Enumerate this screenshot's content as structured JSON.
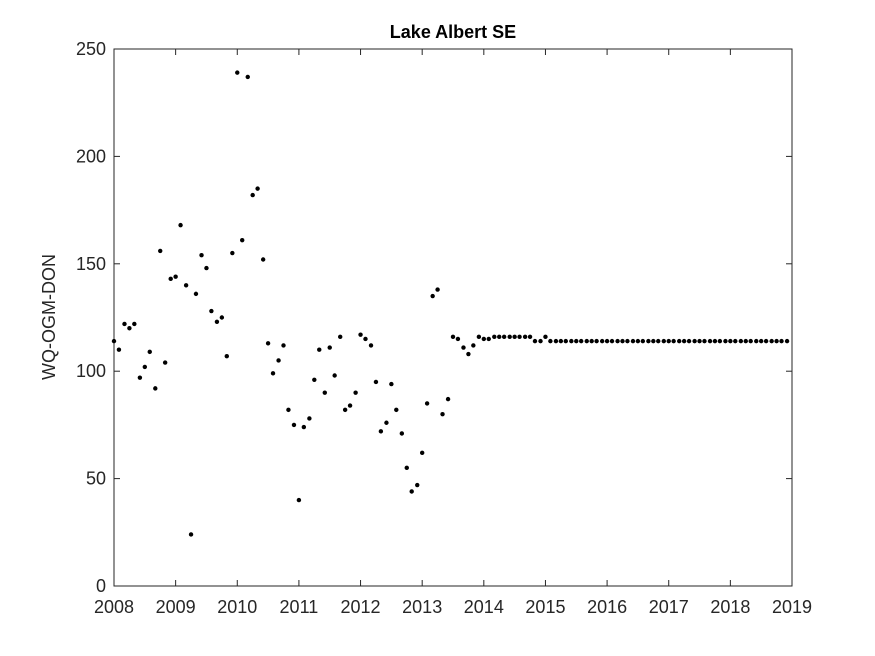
{
  "chart_data": {
    "type": "scatter",
    "title": "Lake Albert SE",
    "xlabel": "",
    "ylabel": "WQ-OGM-DON",
    "xlim": [
      2008,
      2019
    ],
    "ylim": [
      0,
      250
    ],
    "x_ticks": [
      "2008",
      "2009",
      "2010",
      "2011",
      "2012",
      "2013",
      "2014",
      "2015",
      "2016",
      "2017",
      "2018",
      "2019"
    ],
    "y_ticks": [
      "0",
      "50",
      "100",
      "150",
      "200",
      "250"
    ],
    "grid": false,
    "legend": "none",
    "marker_color": "#000000",
    "series": [
      {
        "x": [
          2008.0,
          2008.08,
          2008.17,
          2008.25,
          2008.33,
          2008.42,
          2008.5,
          2008.58,
          2008.67,
          2008.75,
          2008.83,
          2008.92,
          2009.0,
          2009.08,
          2009.17,
          2009.25,
          2009.33,
          2009.42,
          2009.5,
          2009.58,
          2009.67,
          2009.75,
          2009.83,
          2009.92,
          2010.0,
          2010.08,
          2010.17,
          2010.25,
          2010.33,
          2010.42,
          2010.5,
          2010.58,
          2010.67,
          2010.75,
          2010.83,
          2010.92,
          2011.0,
          2011.08,
          2011.17,
          2011.25,
          2011.33,
          2011.42,
          2011.5,
          2011.58,
          2011.67,
          2011.75,
          2011.83,
          2011.92,
          2012.0,
          2012.08,
          2012.17,
          2012.25,
          2012.33,
          2012.42,
          2012.5,
          2012.58,
          2012.67,
          2012.75,
          2012.83,
          2012.92,
          2013.0,
          2013.08,
          2013.17,
          2013.25,
          2013.33,
          2013.42,
          2013.5,
          2013.58,
          2013.67,
          2013.75,
          2013.83,
          2013.92,
          2014.0,
          2014.08,
          2014.17,
          2014.25,
          2014.33,
          2014.42,
          2014.5,
          2014.58,
          2014.67,
          2014.75,
          2014.83,
          2014.92,
          2015.0,
          2015.08,
          2015.17,
          2015.25,
          2015.33,
          2015.42,
          2015.5,
          2015.58,
          2015.67,
          2015.75,
          2015.83,
          2015.92,
          2016.0,
          2016.08,
          2016.17,
          2016.25,
          2016.33,
          2016.42,
          2016.5,
          2016.58,
          2016.67,
          2016.75,
          2016.83,
          2016.92,
          2017.0,
          2017.08,
          2017.17,
          2017.25,
          2017.33,
          2017.42,
          2017.5,
          2017.58,
          2017.67,
          2017.75,
          2017.83,
          2017.92,
          2018.0,
          2018.08,
          2018.17,
          2018.25,
          2018.33,
          2018.42,
          2018.5,
          2018.58,
          2018.67,
          2018.75,
          2018.83,
          2018.92
        ],
        "y": [
          114,
          110,
          122,
          120,
          122,
          97,
          102,
          109,
          92,
          156,
          104,
          143,
          144,
          168,
          140,
          24,
          136,
          154,
          148,
          128,
          123,
          125,
          107,
          155,
          239,
          161,
          237,
          182,
          185,
          152,
          113,
          99,
          105,
          112,
          82,
          75,
          40,
          74,
          78,
          96,
          110,
          90,
          111,
          98,
          116,
          82,
          84,
          90,
          117,
          115,
          112,
          95,
          72,
          76,
          94,
          82,
          71,
          55,
          44,
          47,
          62,
          85,
          135,
          138,
          80,
          87,
          116,
          115,
          111,
          108,
          112,
          116,
          115,
          115,
          116,
          116,
          116,
          116,
          116,
          116,
          116,
          116,
          114,
          114,
          116,
          114,
          114,
          114,
          114,
          114,
          114,
          114,
          114,
          114,
          114,
          114,
          114,
          114,
          114,
          114,
          114,
          114,
          114,
          114,
          114,
          114,
          114,
          114,
          114,
          114,
          114,
          114,
          114,
          114,
          114,
          114,
          114,
          114,
          114,
          114,
          114,
          114,
          114,
          114,
          114,
          114,
          114,
          114,
          114,
          114,
          114,
          114
        ]
      }
    ]
  }
}
